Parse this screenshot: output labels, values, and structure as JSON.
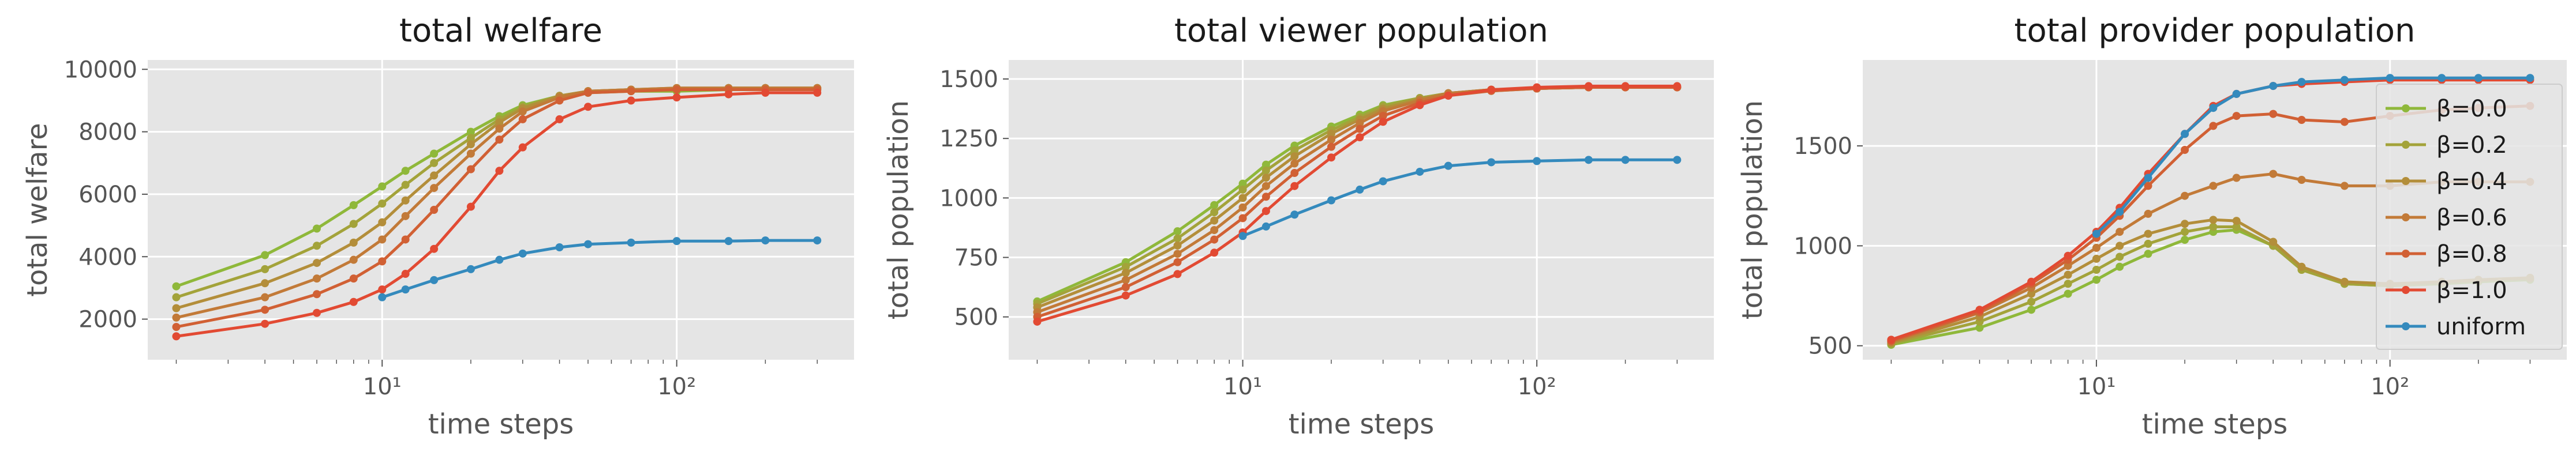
{
  "colors": {
    "background": "#e5e5e5",
    "grid": "#ffffff",
    "beta_0_0": "#8fb83a",
    "beta_0_2": "#a3a33a",
    "beta_0_4": "#b38e3a",
    "beta_0_6": "#c27a38",
    "beta_0_8": "#d16034",
    "beta_1_0": "#e24a33",
    "uniform": "#348abd"
  },
  "chart_data": [
    {
      "type": "line",
      "title": "total welfare",
      "xlabel": "time steps",
      "ylabel": "total welfare",
      "xscale": "log",
      "xlim": [
        1.6,
        400
      ],
      "ylim": [
        700,
        10300
      ],
      "yticks": [
        "2000",
        "4000",
        "6000",
        "8000",
        "10000"
      ],
      "xticks": [
        "10¹",
        "10²"
      ],
      "grid": true,
      "series": [
        {
          "name": "β=0.0",
          "key": "beta_0_0",
          "x": [
            2,
            4,
            6,
            8,
            10,
            12,
            15,
            20,
            25,
            30,
            40,
            50,
            70,
            100,
            150,
            200,
            300
          ],
          "y": [
            3050,
            4050,
            4900,
            5650,
            6250,
            6750,
            7300,
            8000,
            8500,
            8850,
            9150,
            9250,
            9300,
            9300,
            9350,
            9350,
            9350
          ]
        },
        {
          "name": "β=0.2",
          "key": "beta_0_2",
          "x": [
            2,
            4,
            6,
            8,
            10,
            12,
            15,
            20,
            25,
            30,
            40,
            50,
            70,
            100,
            150,
            200,
            300
          ],
          "y": [
            2700,
            3600,
            4350,
            5050,
            5700,
            6300,
            7000,
            7800,
            8400,
            8800,
            9150,
            9300,
            9350,
            9350,
            9400,
            9400,
            9400
          ]
        },
        {
          "name": "β=0.4",
          "key": "beta_0_4",
          "x": [
            2,
            4,
            6,
            8,
            10,
            12,
            15,
            20,
            25,
            30,
            40,
            50,
            70,
            100,
            150,
            200,
            300
          ],
          "y": [
            2350,
            3150,
            3800,
            4450,
            5100,
            5800,
            6600,
            7600,
            8300,
            8750,
            9150,
            9300,
            9350,
            9400,
            9400,
            9400,
            9400
          ]
        },
        {
          "name": "β=0.6",
          "key": "beta_0_6",
          "x": [
            2,
            4,
            6,
            8,
            10,
            12,
            15,
            20,
            25,
            30,
            40,
            50,
            70,
            100,
            150,
            200,
            300
          ],
          "y": [
            2050,
            2700,
            3300,
            3900,
            4550,
            5300,
            6200,
            7300,
            8100,
            8650,
            9100,
            9300,
            9350,
            9400,
            9400,
            9400,
            9400
          ]
        },
        {
          "name": "β=0.8",
          "key": "beta_0_8",
          "x": [
            2,
            4,
            6,
            8,
            10,
            12,
            15,
            20,
            25,
            30,
            40,
            50,
            70,
            100,
            150,
            200,
            300
          ],
          "y": [
            1750,
            2300,
            2800,
            3300,
            3850,
            4550,
            5500,
            6800,
            7750,
            8400,
            9000,
            9250,
            9300,
            9350,
            9350,
            9350,
            9350
          ]
        },
        {
          "name": "β=1.0",
          "key": "beta_1_0",
          "x": [
            2,
            4,
            6,
            8,
            10,
            12,
            15,
            20,
            25,
            30,
            40,
            50,
            70,
            100,
            150,
            200,
            300
          ],
          "y": [
            1450,
            1850,
            2200,
            2550,
            2950,
            3450,
            4250,
            5600,
            6750,
            7500,
            8400,
            8800,
            9000,
            9100,
            9200,
            9250,
            9250
          ]
        },
        {
          "name": "uniform",
          "key": "uniform",
          "x": [
            10,
            12,
            15,
            20,
            25,
            30,
            40,
            50,
            70,
            100,
            150,
            200,
            300
          ],
          "y": [
            2700,
            2950,
            3250,
            3600,
            3900,
            4100,
            4300,
            4400,
            4450,
            4500,
            4500,
            4520,
            4520
          ]
        }
      ]
    },
    {
      "type": "line",
      "title": "total viewer population",
      "xlabel": "time steps",
      "ylabel": "total population",
      "xscale": "log",
      "xlim": [
        1.6,
        400
      ],
      "ylim": [
        320,
        1580
      ],
      "yticks": [
        "500",
        "750",
        "1000",
        "1250",
        "1500"
      ],
      "xticks": [
        "10¹",
        "10²"
      ],
      "grid": true,
      "series": [
        {
          "name": "β=0.0",
          "key": "beta_0_0",
          "x": [
            2,
            4,
            6,
            8,
            10,
            12,
            15,
            20,
            25,
            30,
            40,
            50,
            70,
            100,
            150,
            200,
            300
          ],
          "y": [
            565,
            730,
            860,
            970,
            1060,
            1140,
            1220,
            1300,
            1350,
            1390,
            1420,
            1440,
            1450,
            1460,
            1465,
            1465,
            1465
          ]
        },
        {
          "name": "β=0.2",
          "key": "beta_0_2",
          "x": [
            2,
            4,
            6,
            8,
            10,
            12,
            15,
            20,
            25,
            30,
            40,
            50,
            70,
            100,
            150,
            200,
            300
          ],
          "y": [
            555,
            710,
            830,
            940,
            1035,
            1115,
            1200,
            1285,
            1340,
            1385,
            1420,
            1440,
            1455,
            1460,
            1465,
            1465,
            1465
          ]
        },
        {
          "name": "β=0.4",
          "key": "beta_0_4",
          "x": [
            2,
            4,
            6,
            8,
            10,
            12,
            15,
            20,
            25,
            30,
            40,
            50,
            70,
            100,
            150,
            200,
            300
          ],
          "y": [
            540,
            685,
            800,
            905,
            1000,
            1085,
            1175,
            1270,
            1330,
            1375,
            1415,
            1440,
            1455,
            1460,
            1465,
            1465,
            1465
          ]
        },
        {
          "name": "β=0.6",
          "key": "beta_0_6",
          "x": [
            2,
            4,
            6,
            8,
            10,
            12,
            15,
            20,
            25,
            30,
            40,
            50,
            70,
            100,
            150,
            200,
            300
          ],
          "y": [
            520,
            655,
            765,
            865,
            960,
            1050,
            1145,
            1245,
            1315,
            1365,
            1410,
            1440,
            1455,
            1460,
            1465,
            1465,
            1465
          ]
        },
        {
          "name": "β=0.8",
          "key": "beta_0_8",
          "x": [
            2,
            4,
            6,
            8,
            10,
            12,
            15,
            20,
            25,
            30,
            40,
            50,
            70,
            100,
            150,
            200,
            300
          ],
          "y": [
            500,
            625,
            730,
            825,
            915,
            1005,
            1105,
            1215,
            1290,
            1345,
            1400,
            1430,
            1450,
            1460,
            1465,
            1465,
            1465
          ]
        },
        {
          "name": "β=1.0",
          "key": "beta_1_0",
          "x": [
            2,
            4,
            6,
            8,
            10,
            12,
            15,
            20,
            25,
            30,
            40,
            50,
            70,
            100,
            150,
            200,
            300
          ],
          "y": [
            480,
            590,
            680,
            770,
            855,
            945,
            1050,
            1170,
            1255,
            1320,
            1390,
            1430,
            1455,
            1465,
            1470,
            1470,
            1470
          ]
        },
        {
          "name": "uniform",
          "key": "uniform",
          "x": [
            10,
            12,
            15,
            20,
            25,
            30,
            40,
            50,
            70,
            100,
            150,
            200,
            300
          ],
          "y": [
            840,
            880,
            930,
            990,
            1035,
            1070,
            1110,
            1135,
            1150,
            1155,
            1160,
            1160,
            1160
          ]
        }
      ]
    },
    {
      "type": "line",
      "title": "total provider population",
      "xlabel": "time steps",
      "ylabel": "total population",
      "xscale": "log",
      "xlim": [
        1.6,
        400
      ],
      "ylim": [
        430,
        1930
      ],
      "yticks": [
        "500",
        "1000",
        "1500"
      ],
      "xticks": [
        "10¹",
        "10²"
      ],
      "grid": true,
      "legend": "right",
      "series": [
        {
          "name": "β=0.0",
          "key": "beta_0_0",
          "x": [
            2,
            4,
            6,
            8,
            10,
            12,
            15,
            20,
            25,
            30,
            40,
            50,
            70,
            100,
            150,
            200,
            300
          ],
          "y": [
            505,
            590,
            680,
            760,
            830,
            895,
            960,
            1030,
            1070,
            1080,
            1000,
            880,
            810,
            800,
            810,
            820,
            830
          ]
        },
        {
          "name": "β=0.2",
          "key": "beta_0_2",
          "x": [
            2,
            4,
            6,
            8,
            10,
            12,
            15,
            20,
            25,
            30,
            40,
            50,
            70,
            100,
            150,
            200,
            300
          ],
          "y": [
            510,
            620,
            720,
            810,
            880,
            945,
            1010,
            1070,
            1095,
            1095,
            1000,
            880,
            810,
            800,
            815,
            825,
            835
          ]
        },
        {
          "name": "β=0.4",
          "key": "beta_0_4",
          "x": [
            2,
            4,
            6,
            8,
            10,
            12,
            15,
            20,
            25,
            30,
            40,
            50,
            70,
            100,
            150,
            200,
            300
          ],
          "y": [
            515,
            645,
            760,
            855,
            935,
            1000,
            1060,
            1110,
            1130,
            1125,
            1020,
            895,
            820,
            810,
            820,
            830,
            840
          ]
        },
        {
          "name": "β=0.6",
          "key": "beta_0_6",
          "x": [
            2,
            4,
            6,
            8,
            10,
            12,
            15,
            20,
            25,
            30,
            40,
            50,
            70,
            100,
            150,
            200,
            300
          ],
          "y": [
            520,
            665,
            790,
            900,
            990,
            1070,
            1160,
            1250,
            1300,
            1340,
            1360,
            1330,
            1300,
            1300,
            1320,
            1320,
            1320
          ]
        },
        {
          "name": "β=0.8",
          "key": "beta_0_8",
          "x": [
            2,
            4,
            6,
            8,
            10,
            12,
            15,
            20,
            25,
            30,
            40,
            50,
            70,
            100,
            150,
            200,
            300
          ],
          "y": [
            525,
            670,
            810,
            930,
            1040,
            1150,
            1300,
            1480,
            1600,
            1650,
            1660,
            1630,
            1620,
            1650,
            1680,
            1690,
            1700
          ]
        },
        {
          "name": "β=1.0",
          "key": "beta_1_0",
          "x": [
            2,
            4,
            6,
            8,
            10,
            12,
            15,
            20,
            25,
            30,
            40,
            50,
            70,
            100,
            150,
            200,
            300
          ],
          "y": [
            530,
            680,
            820,
            950,
            1070,
            1190,
            1360,
            1560,
            1700,
            1760,
            1800,
            1810,
            1820,
            1830,
            1830,
            1830,
            1830
          ]
        },
        {
          "name": "uniform",
          "key": "uniform",
          "x": [
            10,
            12,
            15,
            20,
            25,
            30,
            40,
            50,
            70,
            100,
            150,
            200,
            300
          ],
          "y": [
            1060,
            1170,
            1340,
            1560,
            1690,
            1760,
            1800,
            1820,
            1830,
            1840,
            1840,
            1840,
            1840
          ]
        }
      ]
    }
  ]
}
